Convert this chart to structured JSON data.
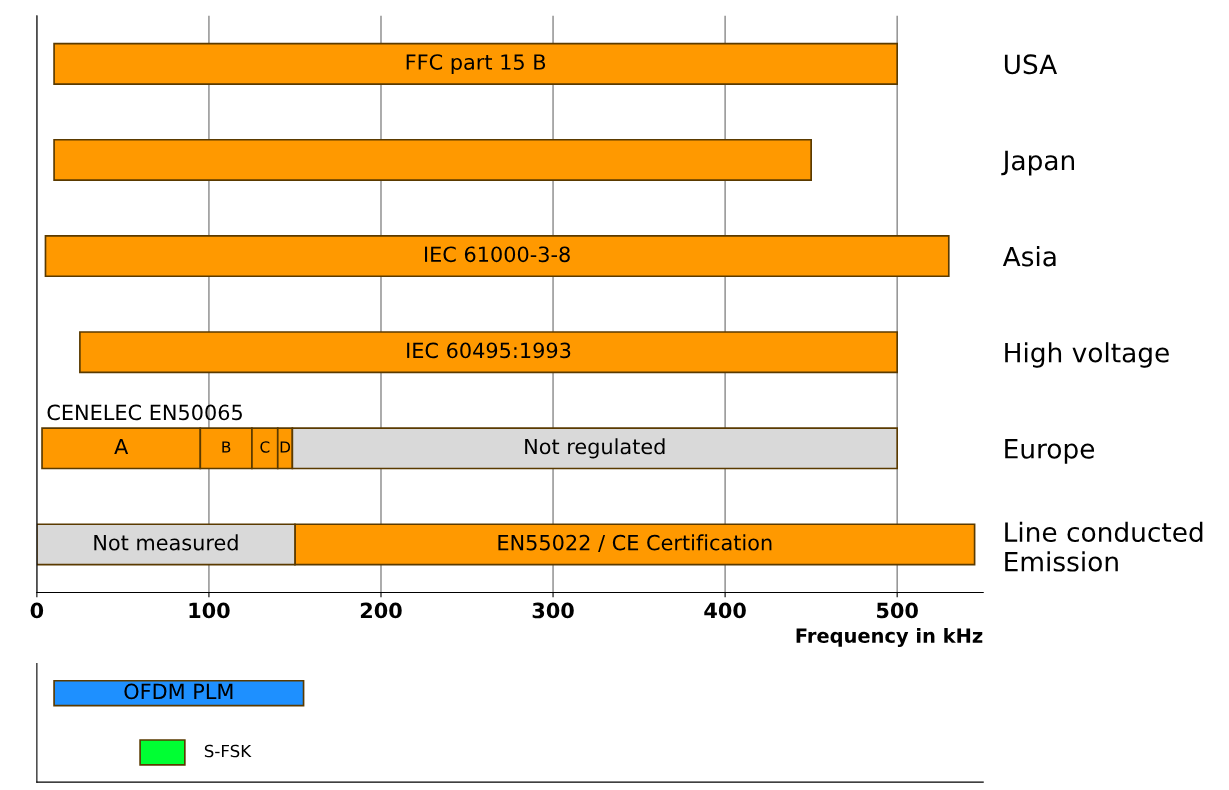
{
  "chart_data": [
    {
      "type": "bar",
      "orientation": "horizontal",
      "categories": [
        "USA",
        "Japan",
        "Asia",
        "High voltage",
        "Europe",
        "Line conducted\nEmission"
      ],
      "xlim": [
        0,
        550
      ],
      "xticks": [
        0,
        100,
        200,
        300,
        400,
        500
      ],
      "xlabel": "Frequency in kHz",
      "grid": "x",
      "legend": false,
      "series": [
        {
          "color": "#ff9900",
          "base": [
            10,
            10,
            5,
            25,
            3,
            150
          ],
          "values": [
            490,
            440,
            525,
            475,
            92,
            395
          ],
          "value_labels": [
            "FFC part 15 B",
            null,
            "IEC 61000-3-8",
            "IEC 60495:1993",
            "A",
            "EN55022 / CE Certification"
          ]
        },
        {
          "color": "#ff9900",
          "base": [
            null,
            null,
            null,
            null,
            95,
            null
          ],
          "values": [
            null,
            null,
            null,
            null,
            30,
            null
          ],
          "value_labels": [
            null,
            null,
            null,
            null,
            "B",
            null
          ]
        },
        {
          "color": "#ff9900",
          "base": [
            null,
            null,
            null,
            null,
            125,
            null
          ],
          "values": [
            null,
            null,
            null,
            null,
            15,
            null
          ],
          "value_labels": [
            null,
            null,
            null,
            null,
            "C",
            null
          ]
        },
        {
          "color": "#ff9900",
          "base": [
            null,
            null,
            null,
            null,
            140,
            null
          ],
          "values": [
            null,
            null,
            null,
            null,
            8.5,
            null
          ],
          "value_labels": [
            null,
            null,
            null,
            null,
            "D",
            null
          ]
        },
        {
          "color": "#d9d9d9",
          "base": [
            null,
            null,
            null,
            null,
            148.5,
            0
          ],
          "values": [
            null,
            null,
            null,
            null,
            351.5,
            150
          ],
          "value_labels": [
            null,
            null,
            null,
            null,
            "Not regulated",
            "Not measured"
          ]
        }
      ],
      "annotations": [
        "CENELEC EN50065"
      ]
    },
    {
      "type": "bar",
      "orientation": "horizontal",
      "categories": [
        null,
        null
      ],
      "xlim": [
        0,
        550
      ],
      "xticks": [
        0,
        100,
        200,
        300,
        400,
        500
      ],
      "tick_labels": false,
      "legend": false,
      "series": [
        {
          "colors": [
            "#1e90ff",
            "#00ff33"
          ],
          "base": [
            10,
            60
          ],
          "values": [
            145,
            26
          ],
          "value_labels": [
            "OFDM PLM",
            "S-FSK"
          ]
        }
      ]
    }
  ]
}
